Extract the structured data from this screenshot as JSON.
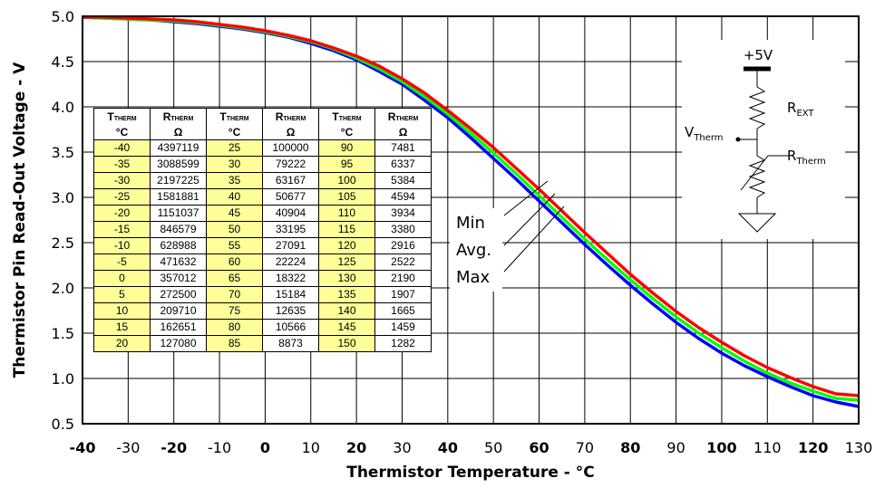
{
  "chart_data": {
    "type": "line",
    "xlabel": "Thermistor Temperature - °C",
    "ylabel": "Thermistor Pin Read-Out Voltage - V",
    "xlim": [
      -40,
      130
    ],
    "ylim": [
      0.5,
      5.0
    ],
    "xticks": [
      "-40",
      "-30",
      "-20",
      "-10",
      "0",
      "10",
      "20",
      "30",
      "40",
      "50",
      "60",
      "70",
      "80",
      "90",
      "100",
      "110",
      "120",
      "130"
    ],
    "yticks": [
      "0.5",
      "1.0",
      "1.5",
      "2.0",
      "2.5",
      "3.0",
      "3.5",
      "4.0",
      "4.5",
      "5.0"
    ],
    "grid": true,
    "x": [
      -40,
      -35,
      -30,
      -25,
      -20,
      -15,
      -10,
      -5,
      0,
      5,
      10,
      15,
      20,
      25,
      30,
      35,
      40,
      45,
      50,
      55,
      60,
      65,
      70,
      75,
      80,
      85,
      90,
      95,
      100,
      105,
      110,
      115,
      120,
      125,
      130
    ],
    "series": [
      {
        "name": "Min",
        "color": "#0000ff",
        "values": [
          4.99,
          4.98,
          4.97,
          4.96,
          4.94,
          4.92,
          4.89,
          4.86,
          4.82,
          4.77,
          4.7,
          4.62,
          4.52,
          4.39,
          4.25,
          4.07,
          3.88,
          3.66,
          3.43,
          3.2,
          2.96,
          2.72,
          2.48,
          2.25,
          2.03,
          1.82,
          1.62,
          1.44,
          1.28,
          1.14,
          1.02,
          0.91,
          0.81,
          0.74,
          0.69
        ]
      },
      {
        "name": "Avg.",
        "color": "#00ff00",
        "values": [
          4.99,
          4.98,
          4.97,
          4.96,
          4.95,
          4.93,
          4.9,
          4.87,
          4.83,
          4.78,
          4.72,
          4.64,
          4.54,
          4.42,
          4.28,
          4.11,
          3.92,
          3.71,
          3.49,
          3.26,
          3.02,
          2.78,
          2.54,
          2.31,
          2.09,
          1.88,
          1.68,
          1.5,
          1.34,
          1.19,
          1.06,
          0.95,
          0.86,
          0.78,
          0.76
        ]
      },
      {
        "name": "Max",
        "color": "#ff0000",
        "values": [
          4.99,
          4.99,
          4.98,
          4.97,
          4.96,
          4.94,
          4.91,
          4.88,
          4.84,
          4.79,
          4.73,
          4.65,
          4.56,
          4.45,
          4.31,
          4.15,
          3.96,
          3.76,
          3.55,
          3.32,
          3.09,
          2.85,
          2.61,
          2.38,
          2.15,
          1.94,
          1.74,
          1.56,
          1.4,
          1.25,
          1.12,
          1.01,
          0.91,
          0.83,
          0.81
        ]
      }
    ],
    "legend": [
      "Min",
      "Avg.",
      "Max"
    ]
  },
  "circuit": {
    "supply": "+5V",
    "rext": [
      "R",
      "EXT"
    ],
    "vtherm": [
      "V",
      "Therm"
    ],
    "rtherm": [
      "R",
      "Therm"
    ]
  },
  "table": {
    "headers": [
      [
        "T",
        "THERM",
        "°C"
      ],
      [
        "R",
        "THERM",
        "Ω"
      ],
      [
        "T",
        "THERM",
        "°C"
      ],
      [
        "R",
        "THERM",
        "Ω"
      ],
      [
        "T",
        "THERM",
        "°C"
      ],
      [
        "R",
        "THERM",
        "Ω"
      ]
    ],
    "rows": [
      [
        "-40",
        "4397119",
        "25",
        "100000",
        "90",
        "7481"
      ],
      [
        "-35",
        "3088599",
        "30",
        "79222",
        "95",
        "6337"
      ],
      [
        "-30",
        "2197225",
        "35",
        "63167",
        "100",
        "5384"
      ],
      [
        "-25",
        "1581881",
        "40",
        "50677",
        "105",
        "4594"
      ],
      [
        "-20",
        "1151037",
        "45",
        "40904",
        "110",
        "3934"
      ],
      [
        "-15",
        "846579",
        "50",
        "33195",
        "115",
        "3380"
      ],
      [
        "-10",
        "628988",
        "55",
        "27091",
        "120",
        "2916"
      ],
      [
        "-5",
        "471632",
        "60",
        "22224",
        "125",
        "2522"
      ],
      [
        "0",
        "357012",
        "65",
        "18322",
        "130",
        "2190"
      ],
      [
        "5",
        "272500",
        "70",
        "15184",
        "135",
        "1907"
      ],
      [
        "10",
        "209710",
        "75",
        "12635",
        "140",
        "1665"
      ],
      [
        "15",
        "162651",
        "80",
        "10566",
        "145",
        "1459"
      ],
      [
        "20",
        "127080",
        "85",
        "8873",
        "150",
        "1282"
      ]
    ]
  }
}
